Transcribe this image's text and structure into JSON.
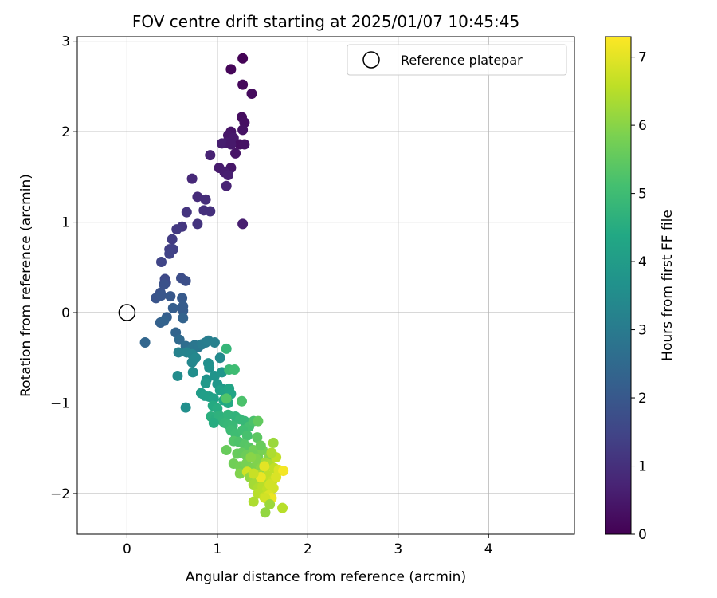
{
  "chart_data": {
    "type": "scatter",
    "title": "FOV centre drift starting at 2025/01/07 10:45:45",
    "xlabel": "Angular distance from reference (arcmin)",
    "ylabel": "Rotation from reference (arcmin)",
    "xlim": [
      -0.55,
      4.95
    ],
    "ylim": [
      -2.45,
      3.05
    ],
    "xticks": [
      0,
      1,
      2,
      3,
      4
    ],
    "yticks": [
      -2,
      -1,
      0,
      1,
      2,
      3
    ],
    "xtick_labels": [
      "0",
      "1",
      "2",
      "3",
      "4"
    ],
    "ytick_labels": [
      "−2",
      "−1",
      "0",
      "1",
      "2",
      "3"
    ],
    "grid": true,
    "colormap": "viridis",
    "colorbar": {
      "label": "Hours from first FF file",
      "range": [
        0,
        7.3
      ],
      "ticks": [
        0,
        1,
        2,
        3,
        4,
        5,
        6,
        7
      ],
      "tick_labels": [
        "0",
        "1",
        "2",
        "3",
        "4",
        "5",
        "6",
        "7"
      ]
    },
    "legend": {
      "placement": "top-right",
      "entries": [
        {
          "label": "Reference platepar",
          "marker": "open-circle"
        }
      ]
    },
    "reference_point": {
      "x": 0,
      "y": 0
    },
    "points": [
      [
        1.28,
        2.81,
        0.05
      ],
      [
        1.15,
        2.69,
        0.1
      ],
      [
        1.28,
        2.52,
        0.15
      ],
      [
        1.38,
        2.42,
        0.2
      ],
      [
        1.27,
        2.16,
        0.25
      ],
      [
        1.3,
        2.1,
        0.3
      ],
      [
        1.28,
        2.02,
        0.35
      ],
      [
        1.15,
        2.0,
        0.4
      ],
      [
        1.12,
        1.96,
        0.45
      ],
      [
        1.18,
        1.93,
        0.5
      ],
      [
        1.1,
        1.88,
        0.55
      ],
      [
        1.25,
        1.86,
        0.3
      ],
      [
        1.3,
        1.86,
        0.35
      ],
      [
        1.05,
        1.87,
        0.6
      ],
      [
        1.15,
        1.86,
        0.5
      ],
      [
        0.92,
        1.74,
        0.7
      ],
      [
        1.2,
        1.76,
        0.4
      ],
      [
        1.15,
        1.6,
        0.45
      ],
      [
        1.02,
        1.6,
        0.55
      ],
      [
        1.08,
        1.55,
        0.6
      ],
      [
        1.12,
        1.52,
        0.65
      ],
      [
        1.1,
        1.4,
        0.7
      ],
      [
        1.28,
        0.98,
        0.6
      ],
      [
        0.72,
        1.48,
        0.85
      ],
      [
        0.78,
        1.28,
        0.9
      ],
      [
        0.87,
        1.25,
        0.95
      ],
      [
        0.85,
        1.13,
        1.0
      ],
      [
        0.92,
        1.12,
        1.0
      ],
      [
        0.66,
        1.11,
        1.1
      ],
      [
        0.78,
        0.98,
        1.1
      ],
      [
        0.61,
        0.95,
        1.15
      ],
      [
        0.55,
        0.92,
        1.2
      ],
      [
        0.5,
        0.81,
        1.3
      ],
      [
        0.47,
        0.7,
        1.35
      ],
      [
        0.51,
        0.7,
        1.4
      ],
      [
        0.47,
        0.65,
        1.45
      ],
      [
        0.38,
        0.56,
        1.5
      ],
      [
        0.42,
        0.37,
        1.6
      ],
      [
        0.43,
        0.33,
        1.65
      ],
      [
        0.6,
        0.38,
        1.7
      ],
      [
        0.65,
        0.35,
        1.75
      ],
      [
        0.41,
        0.31,
        1.8
      ],
      [
        0.37,
        0.22,
        1.85
      ],
      [
        0.32,
        0.16,
        1.9
      ],
      [
        0.38,
        0.19,
        1.95
      ],
      [
        0.48,
        0.18,
        2.0
      ],
      [
        0.61,
        0.16,
        2.05
      ],
      [
        0.62,
        0.07,
        2.1
      ],
      [
        0.62,
        0.02,
        2.1
      ],
      [
        0.51,
        0.05,
        2.15
      ],
      [
        0.44,
        -0.05,
        2.2
      ],
      [
        0.37,
        -0.11,
        2.25
      ],
      [
        0.62,
        -0.06,
        2.3
      ],
      [
        0.41,
        -0.09,
        2.3
      ],
      [
        0.54,
        -0.22,
        2.35
      ],
      [
        0.2,
        -0.33,
        2.4
      ],
      [
        0.58,
        -0.3,
        2.5
      ],
      [
        0.65,
        -0.37,
        2.6
      ],
      [
        0.68,
        -0.42,
        2.7
      ],
      [
        0.72,
        -0.4,
        2.8
      ],
      [
        0.75,
        -0.36,
        2.85
      ],
      [
        0.79,
        -0.38,
        2.9
      ],
      [
        0.83,
        -0.35,
        3.0
      ],
      [
        0.87,
        -0.33,
        3.05
      ],
      [
        0.9,
        -0.31,
        3.1
      ],
      [
        0.97,
        -0.33,
        3.15
      ],
      [
        0.57,
        -0.44,
        3.2
      ],
      [
        0.66,
        -0.44,
        3.25
      ],
      [
        0.72,
        -0.46,
        3.3
      ],
      [
        0.72,
        -0.55,
        3.35
      ],
      [
        0.76,
        -0.5,
        3.4
      ],
      [
        1.03,
        -0.5,
        3.45
      ],
      [
        1.1,
        -0.4,
        4.8
      ],
      [
        0.56,
        -0.7,
        3.5
      ],
      [
        0.73,
        -0.66,
        3.55
      ],
      [
        0.9,
        -0.56,
        3.6
      ],
      [
        0.91,
        -0.61,
        3.65
      ],
      [
        0.88,
        -0.74,
        3.7
      ],
      [
        0.97,
        -0.7,
        3.75
      ],
      [
        1.05,
        -0.66,
        3.8
      ],
      [
        1.13,
        -0.63,
        4.9
      ],
      [
        1.19,
        -0.63,
        5.0
      ],
      [
        1.0,
        -0.79,
        3.85
      ],
      [
        1.05,
        -0.84,
        3.9
      ],
      [
        0.87,
        -0.78,
        3.9
      ],
      [
        0.82,
        -0.89,
        4.0
      ],
      [
        0.86,
        -0.92,
        4.05
      ],
      [
        0.91,
        -0.93,
        4.1
      ],
      [
        0.96,
        -0.95,
        4.15
      ],
      [
        1.03,
        -0.86,
        4.1
      ],
      [
        1.08,
        -0.88,
        4.2
      ],
      [
        1.13,
        -0.84,
        4.25
      ],
      [
        1.15,
        -0.9,
        4.3
      ],
      [
        1.07,
        -0.97,
        4.35
      ],
      [
        1.12,
        -1.0,
        4.4
      ],
      [
        0.95,
        -1.03,
        4.45
      ],
      [
        1.0,
        -1.06,
        4.5
      ],
      [
        0.65,
        -1.05,
        3.6
      ],
      [
        1.1,
        -0.95,
        5.3
      ],
      [
        1.27,
        -0.98,
        5.2
      ],
      [
        0.93,
        -1.15,
        4.6
      ],
      [
        0.98,
        -1.18,
        4.55
      ],
      [
        1.02,
        -1.14,
        4.65
      ],
      [
        1.06,
        -1.2,
        4.7
      ],
      [
        1.12,
        -1.13,
        4.75
      ],
      [
        0.96,
        -1.22,
        4.5
      ],
      [
        1.08,
        -1.22,
        4.8
      ],
      [
        1.12,
        -1.24,
        4.85
      ],
      [
        1.2,
        -1.15,
        4.7
      ],
      [
        1.17,
        -1.25,
        4.9
      ],
      [
        1.15,
        -1.3,
        4.95
      ],
      [
        1.2,
        -1.34,
        5.0
      ],
      [
        1.25,
        -1.18,
        4.8
      ],
      [
        1.3,
        -1.2,
        4.85
      ],
      [
        1.35,
        -1.26,
        5.1
      ],
      [
        1.4,
        -1.2,
        5.2
      ],
      [
        1.45,
        -1.2,
        5.5
      ],
      [
        1.28,
        -1.3,
        5.05
      ],
      [
        1.33,
        -1.36,
        5.15
      ],
      [
        1.18,
        -1.42,
        5.3
      ],
      [
        1.24,
        -1.43,
        5.25
      ],
      [
        1.3,
        -1.46,
        5.35
      ],
      [
        1.35,
        -1.49,
        5.4
      ],
      [
        1.44,
        -1.38,
        5.45
      ],
      [
        1.1,
        -1.52,
        5.6
      ],
      [
        1.22,
        -1.56,
        5.6
      ],
      [
        1.27,
        -1.55,
        5.55
      ],
      [
        1.32,
        -1.58,
        5.65
      ],
      [
        1.4,
        -1.52,
        5.7
      ],
      [
        1.45,
        -1.6,
        5.75
      ],
      [
        1.5,
        -1.52,
        5.8
      ],
      [
        1.57,
        -1.6,
        6.0
      ],
      [
        1.62,
        -1.44,
        6.2
      ],
      [
        1.18,
        -1.67,
        5.7
      ],
      [
        1.25,
        -1.7,
        5.75
      ],
      [
        1.32,
        -1.67,
        5.8
      ],
      [
        1.38,
        -1.72,
        5.85
      ],
      [
        1.44,
        -1.66,
        5.9
      ],
      [
        1.48,
        -1.72,
        6.0
      ],
      [
        1.53,
        -1.66,
        6.3
      ],
      [
        1.58,
        -1.68,
        6.4
      ],
      [
        1.63,
        -1.72,
        6.6
      ],
      [
        1.68,
        -1.74,
        6.9
      ],
      [
        1.73,
        -1.75,
        7.2
      ],
      [
        1.25,
        -1.78,
        5.9
      ],
      [
        1.33,
        -1.76,
        6.8
      ],
      [
        1.36,
        -1.82,
        6.1
      ],
      [
        1.41,
        -1.86,
        6.2
      ],
      [
        1.46,
        -1.8,
        6.3
      ],
      [
        1.52,
        -1.85,
        6.4
      ],
      [
        1.56,
        -1.8,
        6.6
      ],
      [
        1.61,
        -1.86,
        6.7
      ],
      [
        1.65,
        -1.82,
        6.9
      ],
      [
        1.4,
        -1.9,
        6.3
      ],
      [
        1.45,
        -1.94,
        6.4
      ],
      [
        1.5,
        -1.92,
        6.5
      ],
      [
        1.55,
        -1.96,
        6.6
      ],
      [
        1.62,
        -1.94,
        6.8
      ],
      [
        1.45,
        -2.0,
        6.5
      ],
      [
        1.52,
        -2.04,
        6.7
      ],
      [
        1.57,
        -2.02,
        6.9
      ],
      [
        1.6,
        -2.05,
        7.1
      ],
      [
        1.53,
        -2.05,
        6.8
      ],
      [
        1.4,
        -2.09,
        6.4
      ],
      [
        1.58,
        -2.12,
        6.2
      ],
      [
        1.72,
        -2.16,
        6.5
      ],
      [
        1.53,
        -2.21,
        6.1
      ],
      [
        1.43,
        -1.62,
        5.9
      ],
      [
        1.37,
        -1.6,
        6.0
      ],
      [
        1.48,
        -1.47,
        5.6
      ],
      [
        1.52,
        -1.7,
        7.0
      ],
      [
        1.48,
        -1.82,
        7.1
      ],
      [
        1.58,
        -1.9,
        6.8
      ],
      [
        1.4,
        -1.78,
        6.7
      ],
      [
        1.65,
        -1.6,
        6.6
      ],
      [
        1.6,
        -1.55,
        6.4
      ]
    ]
  }
}
